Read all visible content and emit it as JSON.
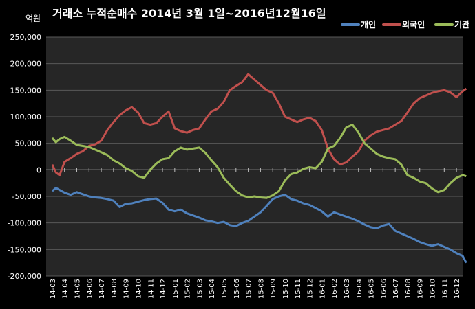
{
  "chart_data": {
    "type": "line",
    "title": "거래소 누적순매수 2014년 3월 1일~2016년12월16일",
    "ylabel": "억원",
    "xlabel": "",
    "ylim": [
      -200000,
      250000
    ],
    "yticks": [
      250000,
      200000,
      150000,
      100000,
      50000,
      0,
      -50000,
      -100000,
      -150000,
      -200000
    ],
    "ytick_labels": [
      "250,000",
      "200,000",
      "150,000",
      "100,000",
      "50,000",
      "0",
      "-50,000",
      "-100,000",
      "-150,000",
      "-200,000"
    ],
    "grid": true,
    "legend_position": "top-right",
    "categories": [
      "14-03",
      "14-04",
      "14-05",
      "14-06",
      "14-07",
      "14-08",
      "14-09",
      "14-10",
      "14-11",
      "14-12",
      "15-01",
      "15-02",
      "15-03",
      "15-04",
      "15-05",
      "15-06",
      "15-07",
      "15-08",
      "15-09",
      "15-10",
      "15-11",
      "15-12",
      "16-01",
      "16-02",
      "16-03",
      "16-04",
      "16-05",
      "16-06",
      "16-07",
      "16-08",
      "16-09",
      "16-10",
      "16-11",
      "16-12"
    ],
    "series": [
      {
        "name": "개인",
        "color": "#4f81bd",
        "x": [
          0,
          0.3,
          0.6,
          1,
          1.5,
          2,
          2.5,
          3,
          3.5,
          4,
          4.5,
          5,
          5.5,
          6,
          6.5,
          7,
          7.5,
          8,
          8.5,
          9,
          9.5,
          10,
          10.5,
          11,
          11.5,
          12,
          12.5,
          13,
          13.5,
          14,
          14.5,
          15,
          15.5,
          16,
          16.5,
          17,
          17.5,
          18,
          18.5,
          19,
          19.5,
          20,
          20.5,
          21,
          21.5,
          22,
          22.5,
          23,
          23.5,
          24,
          24.5,
          25,
          25.5,
          26,
          26.5,
          27,
          27.5,
          28,
          28.5,
          29,
          29.5,
          30,
          30.5,
          31,
          31.5,
          32,
          32.5,
          33,
          33.5,
          33.8
        ],
        "values": [
          -40000,
          -34000,
          -38000,
          -43000,
          -47000,
          -42000,
          -46000,
          -50000,
          -52000,
          -53000,
          -55000,
          -58000,
          -70000,
          -64000,
          -63000,
          -60000,
          -57000,
          -55000,
          -54000,
          -62000,
          -75000,
          -78000,
          -75000,
          -82000,
          -86000,
          -90000,
          -95000,
          -97000,
          -100000,
          -98000,
          -104000,
          -106000,
          -100000,
          -96000,
          -88000,
          -80000,
          -68000,
          -55000,
          -50000,
          -47000,
          -55000,
          -58000,
          -63000,
          -66000,
          -72000,
          -78000,
          -88000,
          -80000,
          -84000,
          -88000,
          -92000,
          -97000,
          -103000,
          -108000,
          -110000,
          -105000,
          -102000,
          -115000,
          -120000,
          -125000,
          -130000,
          -136000,
          -140000,
          -143000,
          -140000,
          -145000,
          -150000,
          -157000,
          -162000,
          -175000
        ]
      },
      {
        "name": "외국인",
        "color": "#c0504d",
        "x": [
          0,
          0.3,
          0.6,
          1,
          1.5,
          2,
          2.5,
          3,
          3.5,
          4,
          4.5,
          5,
          5.5,
          6,
          6.5,
          7,
          7.5,
          8,
          8.5,
          9,
          9.5,
          10,
          10.5,
          11,
          11.5,
          12,
          12.5,
          13,
          13.5,
          14,
          14.5,
          15,
          15.5,
          16,
          16.5,
          17,
          17.5,
          18,
          18.5,
          19,
          19.5,
          20,
          20.5,
          21,
          21.5,
          22,
          22.5,
          23,
          23.5,
          24,
          24.5,
          25,
          25.5,
          26,
          26.5,
          27,
          27.5,
          28,
          28.5,
          29,
          29.5,
          30,
          30.5,
          31,
          31.5,
          32,
          32.5,
          33,
          33.5,
          33.8
        ],
        "values": [
          10000,
          -5000,
          -10000,
          15000,
          22000,
          30000,
          35000,
          45000,
          48000,
          55000,
          75000,
          90000,
          103000,
          112000,
          118000,
          108000,
          88000,
          85000,
          88000,
          100000,
          110000,
          78000,
          73000,
          70000,
          75000,
          78000,
          95000,
          110000,
          115000,
          128000,
          150000,
          158000,
          165000,
          180000,
          170000,
          160000,
          150000,
          145000,
          125000,
          100000,
          95000,
          90000,
          95000,
          98000,
          92000,
          75000,
          40000,
          20000,
          10000,
          14000,
          25000,
          35000,
          55000,
          65000,
          72000,
          75000,
          78000,
          85000,
          92000,
          108000,
          125000,
          135000,
          140000,
          145000,
          148000,
          150000,
          146000,
          137000,
          148000,
          153000
        ]
      },
      {
        "name": "기관",
        "color": "#9bbb59",
        "x": [
          0,
          0.3,
          0.6,
          1,
          1.5,
          2,
          2.5,
          3,
          3.5,
          4,
          4.5,
          5,
          5.5,
          6,
          6.5,
          7,
          7.5,
          8,
          8.5,
          9,
          9.5,
          10,
          10.5,
          11,
          11.5,
          12,
          12.5,
          13,
          13.5,
          14,
          14.5,
          15,
          15.5,
          16,
          16.5,
          17,
          17.5,
          18,
          18.5,
          19,
          19.5,
          20,
          20.5,
          21,
          21.5,
          22,
          22.5,
          23,
          23.5,
          24,
          24.5,
          25,
          25.5,
          26,
          26.5,
          27,
          27.5,
          28,
          28.5,
          29,
          29.5,
          30,
          30.5,
          31,
          31.5,
          32,
          32.5,
          33,
          33.5,
          33.8
        ],
        "values": [
          60000,
          52000,
          58000,
          62000,
          55000,
          47000,
          45000,
          43000,
          38000,
          33000,
          28000,
          18000,
          12000,
          3000,
          -2000,
          -12000,
          -15000,
          0,
          12000,
          20000,
          22000,
          35000,
          42000,
          38000,
          40000,
          42000,
          32000,
          18000,
          5000,
          -15000,
          -28000,
          -40000,
          -48000,
          -52000,
          -50000,
          -52000,
          -53000,
          -48000,
          -40000,
          -20000,
          -8000,
          -5000,
          2000,
          5000,
          3000,
          15000,
          40000,
          45000,
          60000,
          80000,
          85000,
          70000,
          50000,
          40000,
          30000,
          25000,
          22000,
          20000,
          10000,
          -10000,
          -15000,
          -22000,
          -25000,
          -35000,
          -42000,
          -38000,
          -25000,
          -15000,
          -10000,
          -12000
        ]
      }
    ]
  }
}
